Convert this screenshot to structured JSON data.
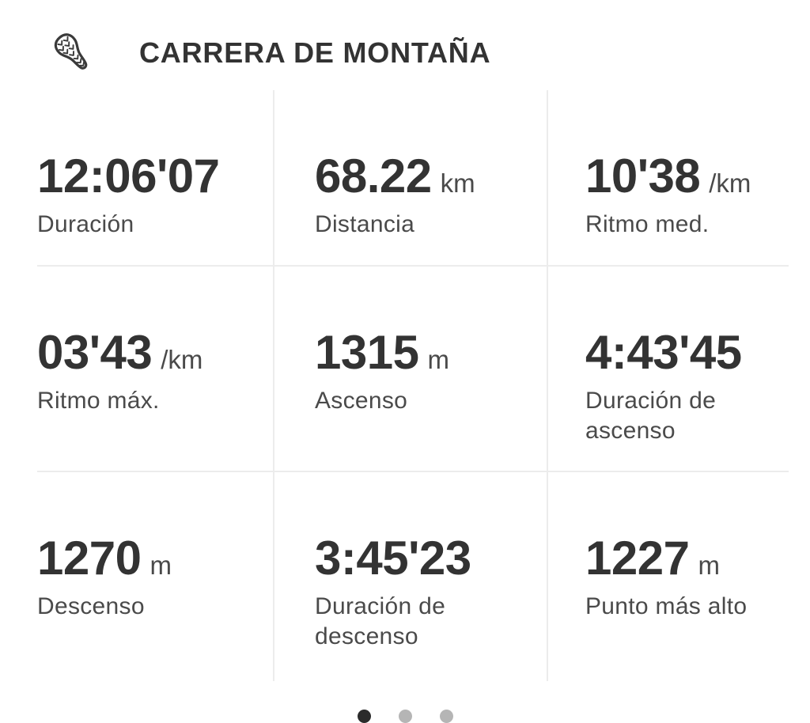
{
  "header": {
    "title": "CARRERA DE MONTAÑA",
    "icon": "shoe-footprint-icon"
  },
  "stats": [
    {
      "value": "12:06'07",
      "unit": "",
      "label": "Duración"
    },
    {
      "value": "68.22",
      "unit": "km",
      "label": "Distancia"
    },
    {
      "value": "10'38",
      "unit": "/km",
      "label": "Ritmo med."
    },
    {
      "value": "03'43",
      "unit": "/km",
      "label": "Ritmo máx."
    },
    {
      "value": "1315",
      "unit": "m",
      "label": "Ascenso"
    },
    {
      "value": "4:43'45",
      "unit": "",
      "label": "Duración de ascenso"
    },
    {
      "value": "1270",
      "unit": "m",
      "label": "Descenso"
    },
    {
      "value": "3:45'23",
      "unit": "",
      "label": "Duración de descenso"
    },
    {
      "value": "1227",
      "unit": "m",
      "label": "Punto más alto"
    }
  ],
  "pagination": {
    "count": 3,
    "active_index": 0
  },
  "colors": {
    "value_text": "#333333",
    "label_text": "#4a4a4a",
    "unit_text": "#4a4a4a",
    "divider": "#ececec",
    "icon_stroke": "#3a3a3a",
    "dot_active": "#2b2b2b",
    "dot_inactive": "#b5b5b5",
    "background": "#ffffff"
  }
}
